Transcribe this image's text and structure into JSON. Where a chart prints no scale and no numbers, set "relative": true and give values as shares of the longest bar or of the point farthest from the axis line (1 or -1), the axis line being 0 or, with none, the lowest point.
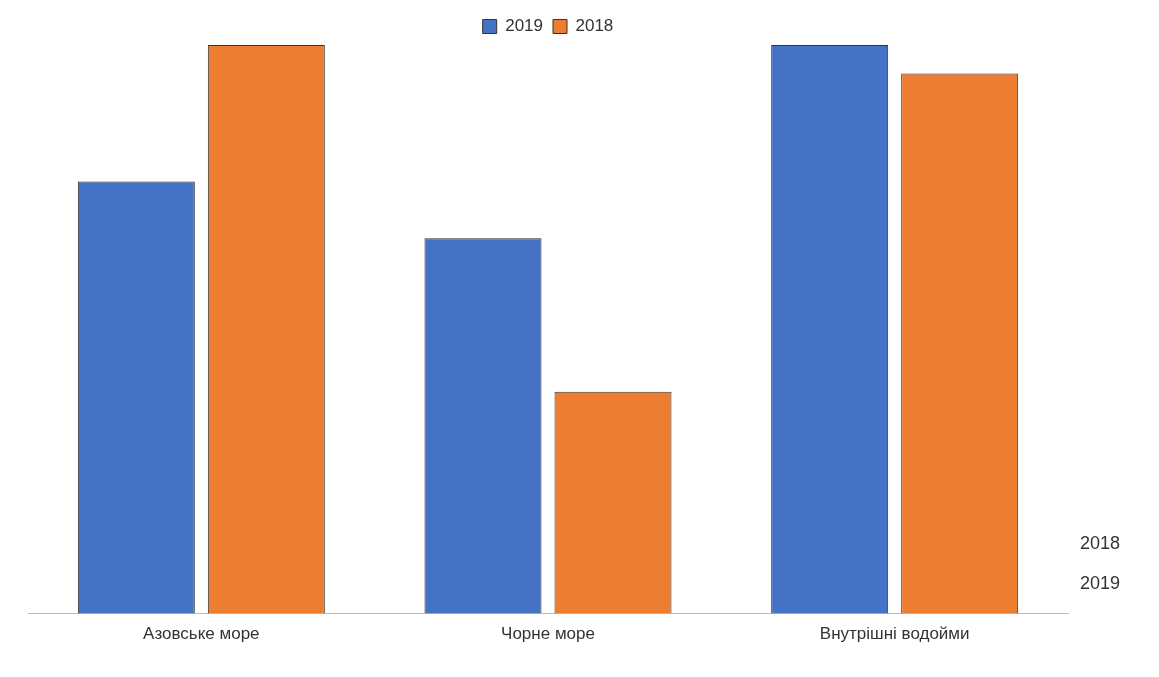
{
  "chart_data": {
    "type": "bar",
    "relative": true,
    "legend": "top",
    "grid": false,
    "categories": [
      "Азовське море",
      "Чорне море",
      "Внутрішні водойми"
    ],
    "series": [
      {
        "name": "2019",
        "color": "#4472c4",
        "values": [
          0.76,
          0.66,
          1.0
        ]
      },
      {
        "name": "2018",
        "color": "#ed7d31",
        "values": [
          1.0,
          0.39,
          0.95
        ]
      }
    ]
  }
}
